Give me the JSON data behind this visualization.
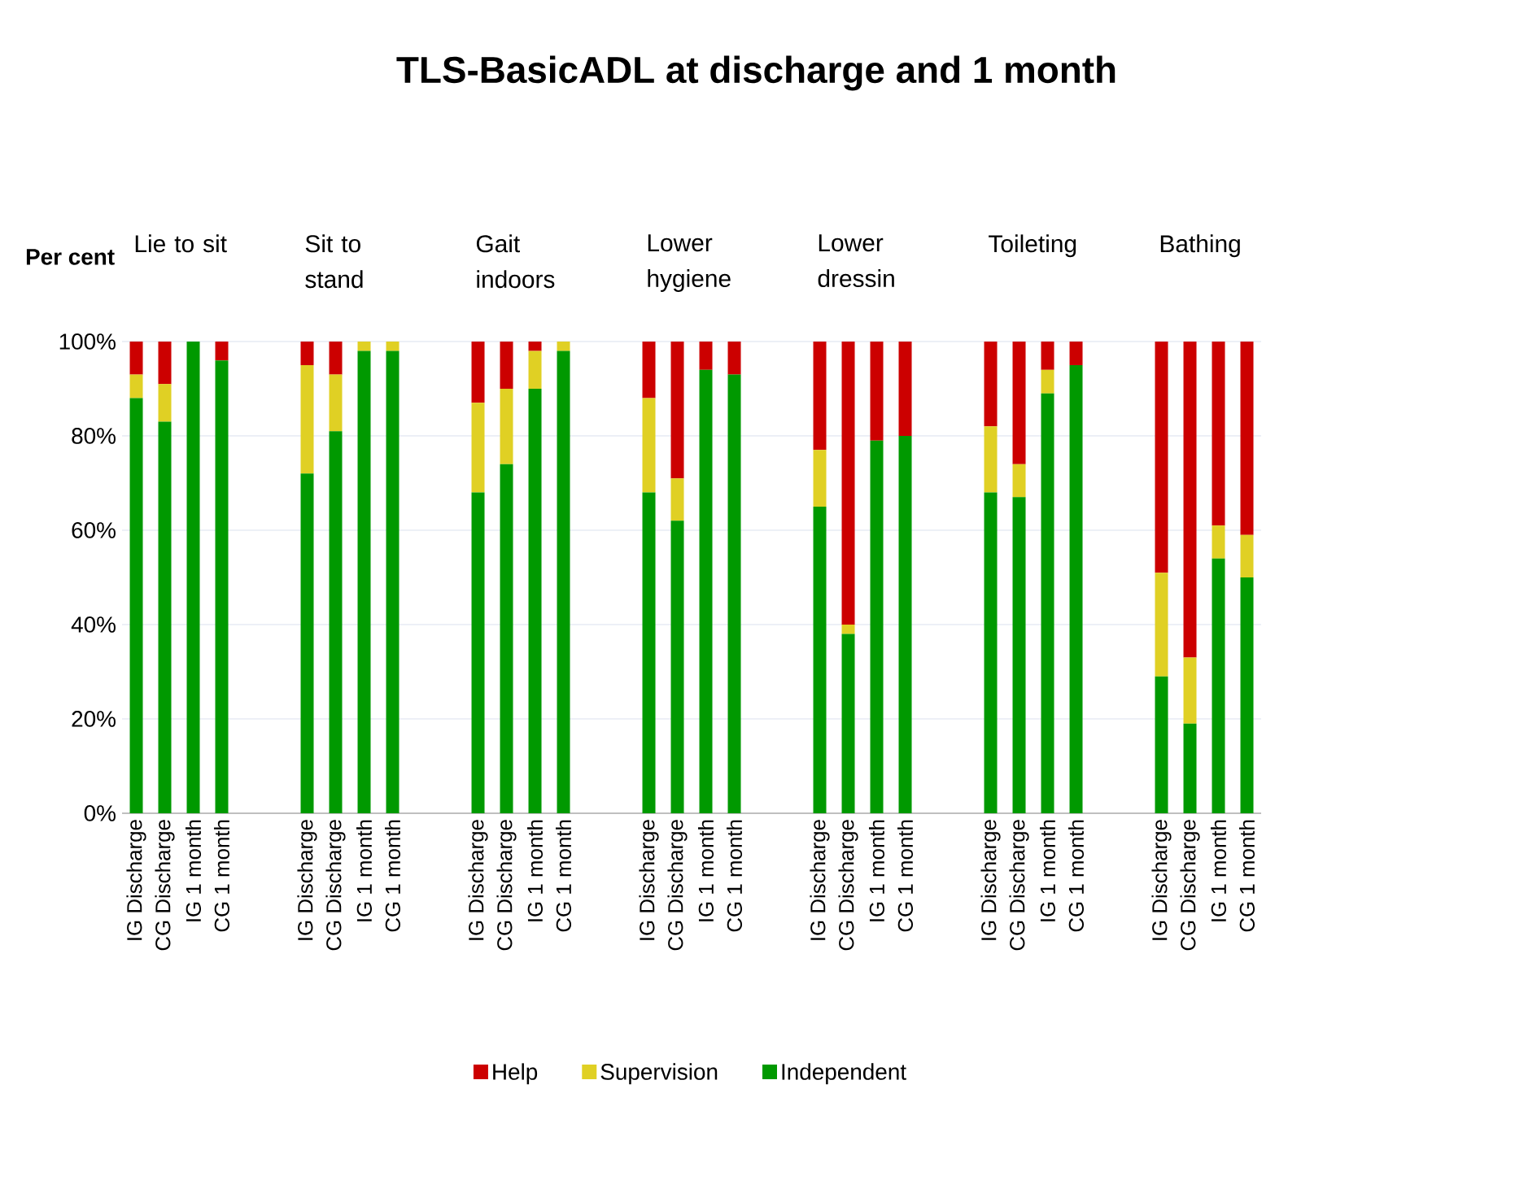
{
  "chart_data": {
    "type": "bar",
    "stacked": true,
    "title": "TLS-BasicADL at discharge and 1 month",
    "ylabel": "Per cent",
    "categories": [
      "IG Discharge",
      "CG Discharge",
      "IG 1 month",
      "CG 1 month",
      null,
      null,
      "IG Discharge",
      "CG Discharge",
      "IG 1 month",
      "CG 1 month",
      null,
      null,
      "IG Discharge",
      "CG Discharge",
      "IG 1 month",
      "CG 1 month",
      null,
      null,
      "IG Discharge",
      "CG Discharge",
      "IG 1 month",
      "CG 1 month",
      null,
      null,
      "IG Discharge",
      "CG Discharge",
      "IG 1 month",
      "CG 1 month",
      null,
      null,
      "IG Discharge",
      "CG Discharge",
      "IG 1 month",
      "CG 1 month",
      null,
      null,
      "IG Discharge",
      "CG Discharge",
      "IG 1 month",
      "CG 1 month"
    ],
    "series": [
      {
        "name": "Independent",
        "color": "#009900",
        "values": [
          88,
          83,
          100,
          96,
          null,
          null,
          72,
          81,
          98,
          98,
          null,
          null,
          68,
          74,
          90,
          98,
          null,
          null,
          68,
          62,
          94,
          93,
          null,
          null,
          65,
          38,
          79,
          80,
          null,
          null,
          68,
          67,
          89,
          95,
          null,
          null,
          29,
          19,
          54,
          50
        ]
      },
      {
        "name": "Supervision",
        "color": "#e0d024",
        "values": [
          5,
          8,
          0,
          0,
          null,
          null,
          23,
          12,
          2,
          2,
          null,
          null,
          19,
          16,
          8,
          2,
          null,
          null,
          20,
          9,
          0,
          0,
          null,
          null,
          12,
          2,
          0,
          0,
          null,
          null,
          14,
          7,
          5,
          0,
          null,
          null,
          22,
          14,
          7,
          9
        ]
      },
      {
        "name": "Help",
        "color": "#cc0000",
        "values": [
          7,
          9,
          0,
          4,
          null,
          null,
          5,
          7,
          0,
          0,
          null,
          null,
          13,
          10,
          2,
          0,
          null,
          null,
          12,
          29,
          6,
          7,
          null,
          null,
          23,
          60,
          21,
          20,
          null,
          null,
          18,
          26,
          6,
          5,
          null,
          null,
          49,
          67,
          39,
          41
        ]
      }
    ],
    "ylim": [
      0,
      100
    ],
    "yticks": [
      {
        "value": 0,
        "label": "0%"
      },
      {
        "value": 20,
        "label": "20%"
      },
      {
        "value": 40,
        "label": "40%"
      },
      {
        "value": 60,
        "label": "60%"
      },
      {
        "value": 80,
        "label": "80%"
      },
      {
        "value": 100,
        "label": "100%"
      }
    ],
    "grid": "y",
    "legend": "bottom",
    "annotations": [
      "Lie to sit",
      "Sit to stand",
      "Gait indoors",
      "Lower hygiene",
      "Lower dressin",
      "Toileting",
      "Bathing"
    ]
  }
}
